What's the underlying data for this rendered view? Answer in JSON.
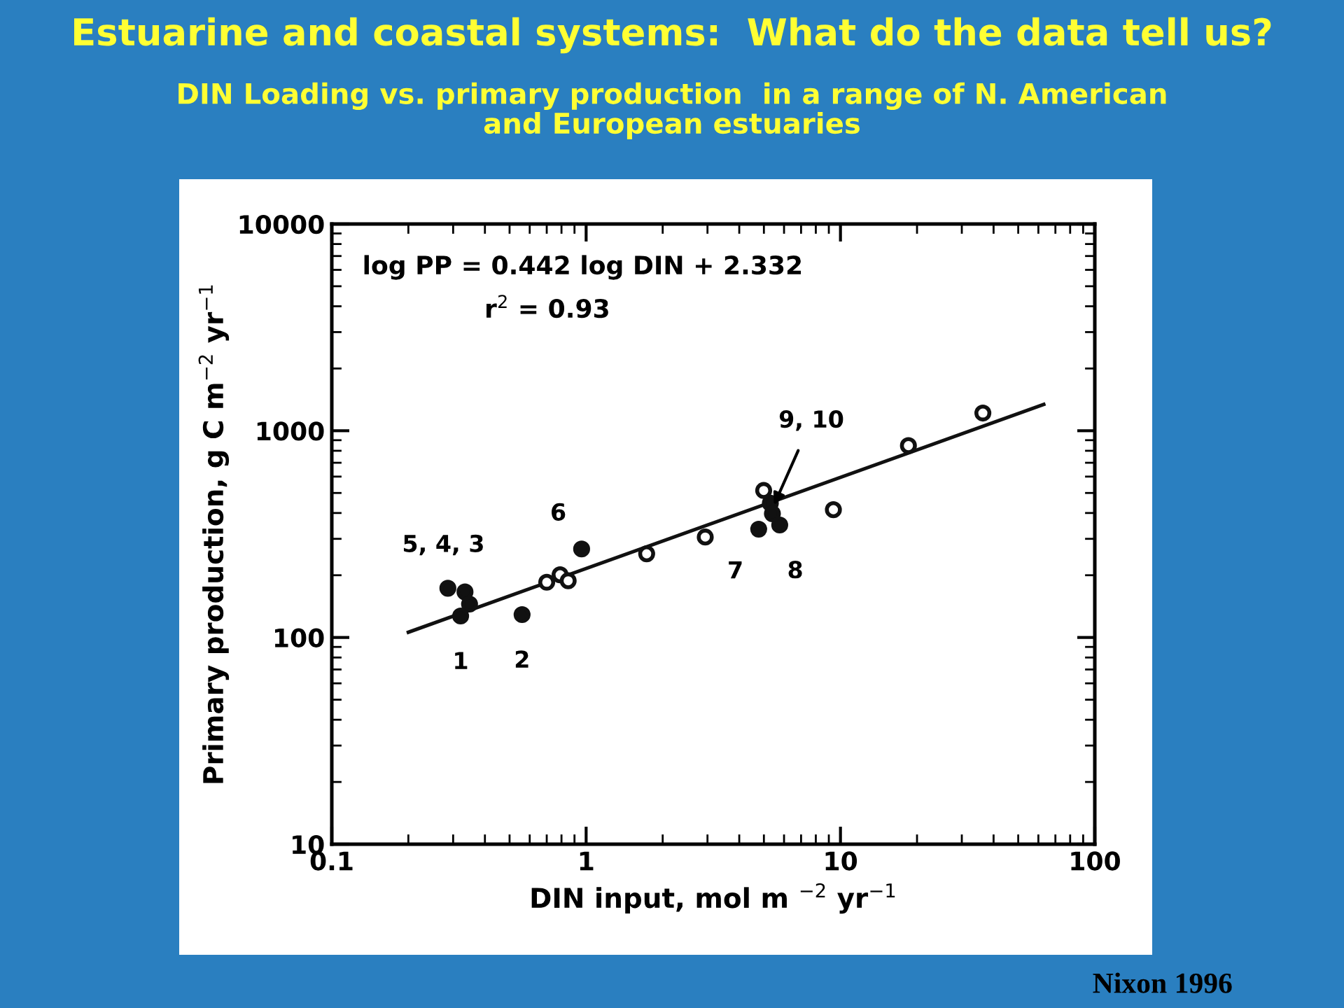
{
  "chart_data": {
    "type": "scatter",
    "title": "Estuarine and coastal systems:  What do the data tell us?",
    "subtitle": "DIN Loading vs. primary production  in a range of N. American\nand European estuaries",
    "xlabel": "DIN input, mol m $^{−2}$ yr$^{−1}$",
    "ylabel": "Primary production, g C m$^{−2}$ yr$^{−1}$",
    "log": "xy",
    "xlim": [
      0.1,
      100
    ],
    "ylim": [
      10,
      10000
    ],
    "xticks": [
      0.1,
      1,
      10,
      100
    ],
    "yticks": [
      10,
      100,
      1000,
      10000
    ],
    "grid": false,
    "legend": false,
    "marker": "circle",
    "series": [
      {
        "color": "#111111",
        "x": [
          0.286,
          0.334,
          0.348,
          0.321,
          0.56,
          0.96,
          4.77,
          5.77,
          5.3,
          5.4
        ],
        "values": [
          173,
          166,
          145,
          127,
          129,
          268,
          334,
          350,
          446,
          397
        ]
      },
      {
        "color": "#ffffff",
        "x": [
          0.7,
          0.79,
          0.85,
          1.73,
          2.94,
          4.99,
          9.38,
          18.5,
          36.3
        ],
        "values": [
          185,
          201,
          188,
          254,
          306,
          514,
          415,
          847,
          1218
        ]
      },
      {
        "type": "line",
        "color": "#111111",
        "marker": "none",
        "x": [
          0.2,
          63
        ],
        "values": [
          106,
          1340
        ]
      }
    ],
    "annotations": [
      "log PP = 0.442 log DIN + 2.332",
      "r$^{2}$ = 0.93",
      {
        "text": "5, 4, 3",
        "x": 0.3,
        "y": 173
      },
      {
        "text": "1",
        "x": 0.321,
        "y": 127
      },
      {
        "text": "2",
        "x": 0.56,
        "y": 129
      },
      {
        "text": "6",
        "x": 0.96,
        "y": 268
      },
      {
        "text": "7",
        "x": 4.77,
        "y": 334
      },
      {
        "text": "8",
        "x": 5.77,
        "y": 350
      },
      {
        "text": "9, 10",
        "x": 5.4,
        "y": 420
      },
      "Nixon 1996"
    ]
  }
}
